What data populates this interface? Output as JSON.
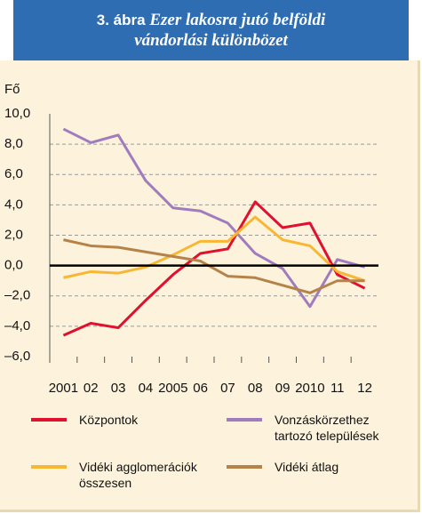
{
  "chart_data": {
    "type": "line",
    "title_number": "3. ábra",
    "title": "Ezer lakosra jutó belföldi vándorlási különbözet",
    "y_label": "Fő",
    "categories": [
      "2001",
      "02",
      "03",
      "04",
      "2005",
      "06",
      "07",
      "08",
      "09",
      "2010",
      "11",
      "12"
    ],
    "series": [
      {
        "name": "Központok",
        "color": "#e0102f",
        "values": [
          -4.6,
          -3.8,
          -4.1,
          -2.3,
          -0.6,
          0.8,
          1.1,
          4.2,
          2.5,
          2.8,
          -0.6,
          -1.5
        ]
      },
      {
        "name": "Vonzáskörzethez tartozó települések",
        "color": "#a07cbe",
        "values": [
          9.0,
          8.1,
          8.6,
          5.6,
          3.8,
          3.6,
          2.8,
          0.8,
          -0.2,
          -2.7,
          0.4,
          -0.1
        ]
      },
      {
        "name": "Vidéki agglomerációk összesen",
        "color": "#f7b733",
        "values": [
          -0.8,
          -0.4,
          -0.5,
          -0.1,
          0.7,
          1.6,
          1.6,
          3.2,
          1.7,
          1.3,
          -0.4,
          -1.0
        ]
      },
      {
        "name": "Vidéki átlag",
        "color": "#b5834a",
        "values": [
          1.7,
          1.3,
          1.2,
          0.9,
          0.6,
          0.3,
          -0.7,
          -0.8,
          -1.3,
          -1.8,
          -1.0,
          -1.0
        ]
      }
    ],
    "ylim": [
      -6,
      10
    ],
    "yticks": [
      {
        "value": -6,
        "label": "–6,0"
      },
      {
        "value": -4,
        "label": "–4,0"
      },
      {
        "value": -2,
        "label": "–2,0"
      },
      {
        "value": 0,
        "label": "0,0"
      },
      {
        "value": 2,
        "label": "2,0"
      },
      {
        "value": 4,
        "label": "4,0"
      },
      {
        "value": 6,
        "label": "6,0"
      },
      {
        "value": 8,
        "label": "8,0"
      },
      {
        "value": 10,
        "label": "10,0"
      }
    ],
    "grid": true
  }
}
